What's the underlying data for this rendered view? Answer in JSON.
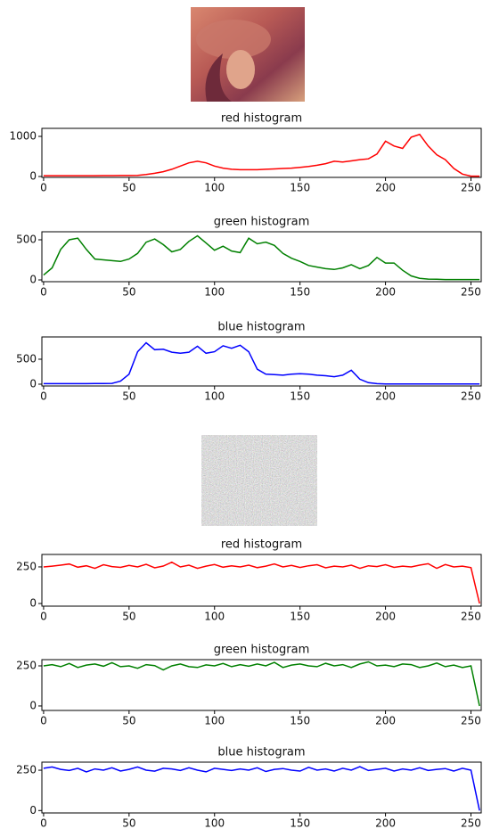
{
  "chart_data": [
    {
      "type": "line",
      "title": "red histogram",
      "color": "#ff0000",
      "x": [
        0,
        5,
        10,
        15,
        20,
        25,
        30,
        35,
        40,
        45,
        50,
        55,
        60,
        65,
        70,
        75,
        80,
        85,
        90,
        95,
        100,
        105,
        110,
        115,
        120,
        125,
        130,
        135,
        140,
        145,
        150,
        155,
        160,
        165,
        170,
        175,
        180,
        185,
        190,
        195,
        200,
        205,
        210,
        215,
        220,
        225,
        230,
        235,
        240,
        245,
        250,
        255
      ],
      "values": [
        20,
        20,
        20,
        20,
        20,
        20,
        20,
        22,
        22,
        24,
        25,
        30,
        50,
        80,
        120,
        180,
        260,
        340,
        380,
        340,
        260,
        210,
        180,
        170,
        170,
        170,
        180,
        190,
        200,
        210,
        230,
        250,
        280,
        320,
        380,
        360,
        390,
        420,
        440,
        560,
        880,
        760,
        700,
        980,
        1050,
        760,
        540,
        420,
        200,
        60,
        10,
        10
      ],
      "xlim": [
        -1,
        256
      ],
      "ylim": [
        -22,
        1200
      ],
      "xticks": [
        0,
        50,
        100,
        150,
        200,
        250
      ],
      "yticks": [
        0,
        1000
      ]
    },
    {
      "type": "line",
      "title": "green histogram",
      "color": "#008000",
      "x": [
        0,
        5,
        10,
        15,
        20,
        25,
        30,
        35,
        40,
        45,
        50,
        55,
        60,
        65,
        70,
        75,
        80,
        85,
        90,
        95,
        100,
        105,
        110,
        115,
        120,
        125,
        130,
        135,
        140,
        145,
        150,
        155,
        160,
        165,
        170,
        175,
        180,
        185,
        190,
        195,
        200,
        205,
        210,
        215,
        220,
        225,
        230,
        235,
        240,
        245,
        250,
        255
      ],
      "values": [
        60,
        150,
        380,
        500,
        520,
        380,
        260,
        250,
        240,
        230,
        260,
        330,
        470,
        510,
        440,
        350,
        380,
        480,
        550,
        460,
        370,
        420,
        360,
        340,
        520,
        450,
        470,
        430,
        330,
        270,
        230,
        180,
        160,
        140,
        130,
        150,
        190,
        140,
        180,
        280,
        210,
        210,
        120,
        50,
        20,
        10,
        8,
        5,
        5,
        5,
        5,
        5
      ],
      "xlim": [
        -1,
        256
      ],
      "ylim": [
        -22,
        600
      ],
      "xticks": [
        0,
        50,
        100,
        150,
        200,
        250
      ],
      "yticks": [
        0,
        500
      ]
    },
    {
      "type": "line",
      "title": "blue histogram",
      "color": "#0000ff",
      "x": [
        0,
        5,
        10,
        15,
        20,
        25,
        30,
        35,
        40,
        45,
        50,
        55,
        60,
        65,
        70,
        75,
        80,
        85,
        90,
        95,
        100,
        105,
        110,
        115,
        120,
        125,
        130,
        135,
        140,
        145,
        150,
        155,
        160,
        165,
        170,
        175,
        180,
        185,
        190,
        195,
        200,
        205,
        210,
        215,
        220,
        225,
        230,
        235,
        240,
        245,
        250,
        255
      ],
      "values": [
        10,
        10,
        10,
        10,
        10,
        10,
        12,
        12,
        15,
        60,
        200,
        650,
        830,
        690,
        700,
        640,
        620,
        640,
        760,
        620,
        650,
        770,
        720,
        780,
        650,
        300,
        200,
        190,
        180,
        200,
        210,
        200,
        180,
        170,
        150,
        180,
        280,
        100,
        30,
        10,
        5,
        5,
        5,
        5,
        5,
        5,
        5,
        5,
        5,
        5,
        5,
        5
      ],
      "xlim": [
        -1,
        256
      ],
      "ylim": [
        -36,
        946
      ],
      "xticks": [
        0,
        50,
        100,
        150,
        200,
        250
      ],
      "yticks": [
        0,
        500
      ]
    },
    {
      "type": "line",
      "title": "red histogram",
      "color": "#ff0000",
      "x": [
        0,
        5,
        10,
        15,
        20,
        25,
        30,
        35,
        40,
        45,
        50,
        55,
        60,
        65,
        70,
        75,
        80,
        85,
        90,
        95,
        100,
        105,
        110,
        115,
        120,
        125,
        130,
        135,
        140,
        145,
        150,
        155,
        160,
        165,
        170,
        175,
        180,
        185,
        190,
        195,
        200,
        205,
        210,
        215,
        220,
        225,
        230,
        235,
        240,
        245,
        250,
        255
      ],
      "values": [
        250,
        255,
        262,
        270,
        248,
        258,
        240,
        265,
        252,
        247,
        260,
        250,
        268,
        244,
        256,
        282,
        250,
        262,
        240,
        255,
        266,
        248,
        258,
        250,
        262,
        245,
        255,
        270,
        250,
        260,
        246,
        258,
        265,
        244,
        255,
        250,
        262,
        240,
        258,
        252,
        265,
        247,
        255,
        250,
        262,
        272,
        240,
        266,
        250,
        255,
        245,
        0
      ],
      "xlim": [
        -1,
        256
      ],
      "ylim": [
        -18,
        335
      ],
      "xticks": [
        0,
        50,
        100,
        150,
        200,
        250
      ],
      "yticks": [
        0,
        250
      ]
    },
    {
      "type": "line",
      "title": "green histogram",
      "color": "#008000",
      "x": [
        0,
        5,
        10,
        15,
        20,
        25,
        30,
        35,
        40,
        45,
        50,
        55,
        60,
        65,
        70,
        75,
        80,
        85,
        90,
        95,
        100,
        105,
        110,
        115,
        120,
        125,
        130,
        135,
        140,
        145,
        150,
        155,
        160,
        165,
        170,
        175,
        180,
        185,
        190,
        195,
        200,
        205,
        210,
        215,
        220,
        225,
        230,
        235,
        240,
        245,
        250,
        255
      ],
      "values": [
        250,
        258,
        245,
        265,
        240,
        255,
        262,
        248,
        270,
        245,
        250,
        235,
        258,
        252,
        225,
        250,
        262,
        245,
        240,
        256,
        250,
        265,
        245,
        258,
        248,
        262,
        250,
        272,
        240,
        255,
        262,
        250,
        245,
        266,
        250,
        258,
        240,
        262,
        275,
        250,
        255,
        245,
        262,
        258,
        240,
        250,
        268,
        245,
        255,
        240,
        250,
        0
      ],
      "xlim": [
        -1,
        256
      ],
      "ylim": [
        -28,
        289
      ],
      "xticks": [
        0,
        50,
        100,
        150,
        200,
        250
      ],
      "yticks": [
        0,
        250
      ]
    },
    {
      "type": "line",
      "title": "blue histogram",
      "color": "#0000ff",
      "x": [
        0,
        5,
        10,
        15,
        20,
        25,
        30,
        35,
        40,
        45,
        50,
        55,
        60,
        65,
        70,
        75,
        80,
        85,
        90,
        95,
        100,
        105,
        110,
        115,
        120,
        125,
        130,
        135,
        140,
        145,
        150,
        155,
        160,
        165,
        170,
        175,
        180,
        185,
        190,
        195,
        200,
        205,
        210,
        215,
        220,
        225,
        230,
        235,
        240,
        245,
        250,
        255
      ],
      "values": [
        262,
        270,
        255,
        248,
        262,
        240,
        258,
        250,
        265,
        245,
        255,
        270,
        250,
        244,
        262,
        258,
        248,
        265,
        250,
        240,
        262,
        255,
        248,
        258,
        250,
        265,
        242,
        255,
        260,
        250,
        245,
        268,
        250,
        258,
        245,
        262,
        250,
        272,
        248,
        255,
        262,
        245,
        258,
        250,
        265,
        248,
        255,
        260,
        245,
        262,
        250,
        0
      ],
      "xlim": [
        -1,
        256
      ],
      "ylim": [
        -15,
        300
      ],
      "xticks": [
        0,
        50,
        100,
        150,
        200,
        250
      ],
      "yticks": [
        0,
        250
      ]
    }
  ]
}
